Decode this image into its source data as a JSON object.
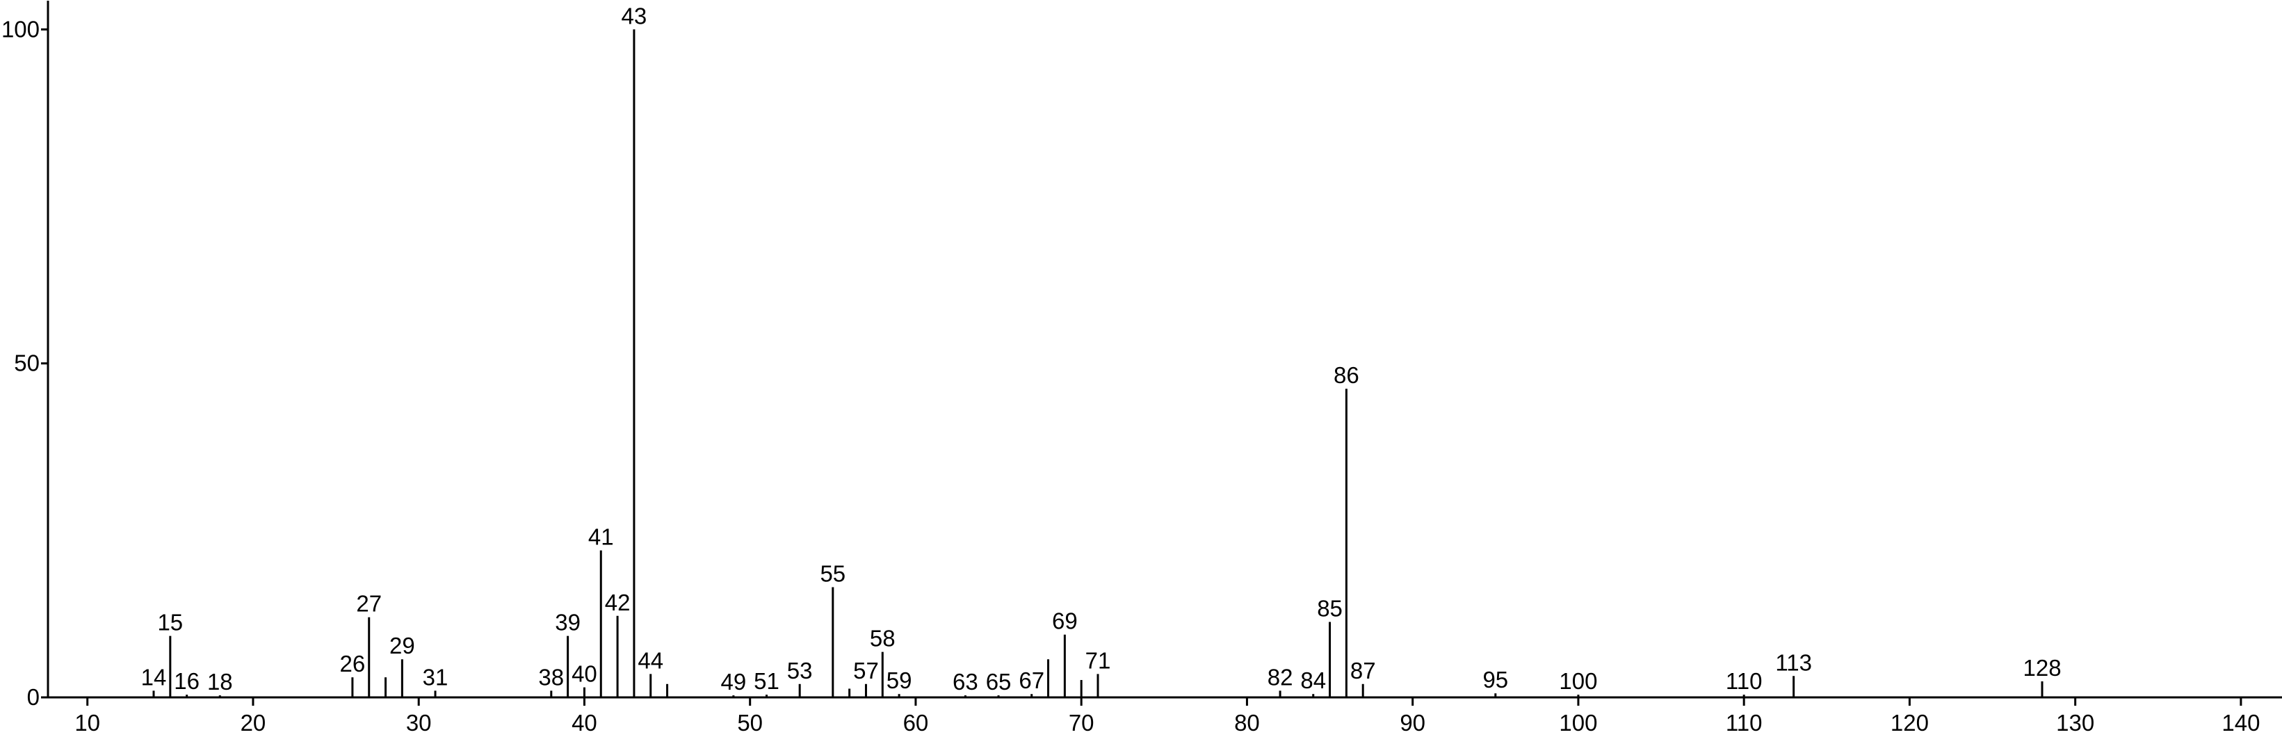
{
  "chart_data": {
    "type": "stem",
    "x": [
      14,
      15,
      16,
      18,
      26,
      27,
      28,
      29,
      31,
      38,
      39,
      40,
      41,
      42,
      43,
      44,
      45,
      49,
      51,
      53,
      55,
      56,
      57,
      58,
      59,
      63,
      65,
      67,
      68,
      69,
      70,
      71,
      82,
      84,
      85,
      86,
      87,
      95,
      100,
      110,
      113,
      128
    ],
    "values": [
      1,
      9.2,
      0.4,
      0.3,
      3,
      12,
      3,
      5.7,
      1,
      1,
      9.2,
      1.5,
      22,
      12.2,
      100,
      3.5,
      2,
      0.3,
      0.4,
      2,
      16.5,
      1.3,
      2,
      6.8,
      0.5,
      0.3,
      0.3,
      0.5,
      5.7,
      9.4,
      2.6,
      3.5,
      1,
      0.5,
      11.3,
      46.2,
      2,
      0.6,
      0.4,
      0.4,
      3.2,
      2.4
    ],
    "peak_labels": [
      "14",
      "15",
      "16",
      "18",
      "26",
      "27",
      null,
      "29",
      "31",
      "38",
      "39",
      "40",
      "41",
      "42",
      "43",
      "44",
      null,
      "49",
      "51",
      "53",
      "55",
      null,
      "57",
      "58",
      "59",
      "63",
      "65",
      "67",
      null,
      "69",
      null,
      "71",
      "82",
      "84",
      "85",
      "86",
      "87",
      "95",
      "100",
      "110",
      "113",
      "128"
    ],
    "color": "#000000",
    "xlim": [
      7.62,
      142.48
    ],
    "ylim": [
      0,
      104.3
    ],
    "xticks": [
      10,
      20,
      30,
      40,
      50,
      60,
      70,
      80,
      90,
      100,
      110,
      120,
      130,
      140
    ],
    "yticks": [
      0,
      50,
      100
    ]
  }
}
